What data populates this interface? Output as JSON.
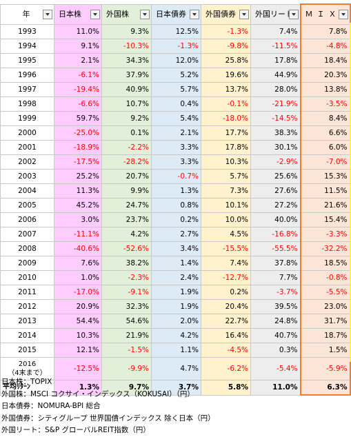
{
  "headers": {
    "year": "年",
    "c1": "日本株",
    "c2": "外国株",
    "c3": "日本債券",
    "c4": "外国債券",
    "c5": "外国リート",
    "c6": "ＭＩＸ"
  },
  "rows": [
    {
      "year": "1993",
      "v": [
        "11.0%",
        "9.3%",
        "12.5%",
        "-1.3%",
        "7.4%",
        "7.8%"
      ]
    },
    {
      "year": "1994",
      "v": [
        "9.1%",
        "-10.3%",
        "-1.3%",
        "-9.8%",
        "-11.5%",
        "-4.8%"
      ]
    },
    {
      "year": "1995",
      "v": [
        "2.1%",
        "34.3%",
        "12.0%",
        "25.8%",
        "17.8%",
        "18.4%"
      ]
    },
    {
      "year": "1996",
      "v": [
        "-6.1%",
        "37.9%",
        "5.2%",
        "19.6%",
        "44.9%",
        "20.3%"
      ]
    },
    {
      "year": "1997",
      "v": [
        "-19.4%",
        "40.9%",
        "5.7%",
        "13.7%",
        "28.0%",
        "13.8%"
      ]
    },
    {
      "year": "1998",
      "v": [
        "-6.6%",
        "10.7%",
        "0.4%",
        "-0.1%",
        "-21.9%",
        "-3.5%"
      ]
    },
    {
      "year": "1999",
      "v": [
        "59.7%",
        "9.2%",
        "5.4%",
        "-18.0%",
        "-14.5%",
        "8.4%"
      ]
    },
    {
      "year": "2000",
      "v": [
        "-25.0%",
        "0.1%",
        "2.1%",
        "17.7%",
        "38.3%",
        "6.6%"
      ]
    },
    {
      "year": "2001",
      "v": [
        "-18.9%",
        "-2.2%",
        "3.3%",
        "17.8%",
        "30.1%",
        "6.0%"
      ]
    },
    {
      "year": "2002",
      "v": [
        "-17.5%",
        "-28.2%",
        "3.3%",
        "10.3%",
        "-2.9%",
        "-7.0%"
      ]
    },
    {
      "year": "2003",
      "v": [
        "25.2%",
        "20.7%",
        "-0.7%",
        "5.7%",
        "25.6%",
        "15.3%"
      ]
    },
    {
      "year": "2004",
      "v": [
        "11.3%",
        "9.9%",
        "1.3%",
        "7.3%",
        "27.6%",
        "11.5%"
      ]
    },
    {
      "year": "2005",
      "v": [
        "45.2%",
        "24.7%",
        "0.8%",
        "10.1%",
        "27.2%",
        "21.6%"
      ]
    },
    {
      "year": "2006",
      "v": [
        "3.0%",
        "23.7%",
        "0.2%",
        "10.0%",
        "40.0%",
        "15.4%"
      ]
    },
    {
      "year": "2007",
      "v": [
        "-11.1%",
        "4.2%",
        "2.7%",
        "4.5%",
        "-16.8%",
        "-3.3%"
      ]
    },
    {
      "year": "2008",
      "v": [
        "-40.6%",
        "-52.6%",
        "3.4%",
        "-15.5%",
        "-55.5%",
        "-32.2%"
      ]
    },
    {
      "year": "2009",
      "v": [
        "7.6%",
        "38.2%",
        "1.4%",
        "7.4%",
        "37.8%",
        "18.5%"
      ]
    },
    {
      "year": "2010",
      "v": [
        "1.0%",
        "-2.3%",
        "2.4%",
        "-12.7%",
        "7.7%",
        "-0.8%"
      ]
    },
    {
      "year": "2011",
      "v": [
        "-17.0%",
        "-9.1%",
        "1.9%",
        "0.2%",
        "-3.7%",
        "-5.5%"
      ]
    },
    {
      "year": "2012",
      "v": [
        "20.9%",
        "32.3%",
        "1.9%",
        "20.4%",
        "39.5%",
        "23.0%"
      ]
    },
    {
      "year": "2013",
      "v": [
        "54.4%",
        "54.6%",
        "2.0%",
        "22.7%",
        "24.8%",
        "31.7%"
      ]
    },
    {
      "year": "2014",
      "v": [
        "10.3%",
        "21.9%",
        "4.2%",
        "16.4%",
        "40.7%",
        "18.7%"
      ]
    },
    {
      "year": "2015",
      "v": [
        "12.1%",
        "-1.5%",
        "1.1%",
        "-4.5%",
        "0.3%",
        "1.5%"
      ]
    }
  ],
  "row2016": {
    "year_line1": "2016",
    "year_line2": "（4末まで）",
    "v": [
      "-12.5%",
      "-9.9%",
      "4.7%",
      "-6.2%",
      "-5.4%",
      "-5.9%"
    ]
  },
  "average": {
    "label": "平均ﾘﾀｰﾝ",
    "v": [
      "1.3%",
      "9.7%",
      "3.7%",
      "5.8%",
      "11.0%",
      "6.3%"
    ]
  },
  "notes": [
    "日本株：TOPIX",
    "外国株：MSCI コクサイ・インデックス（KOKUSAI）（円）",
    "日本債券：NOMURA-BPI 総合",
    "外国債券：シティグループ 世界国債インデックス 除く日本（円）",
    "外国リート：S&P グローバルREIT指数（円）"
  ],
  "colors": {
    "c1": "#ffccff",
    "c2": "#e2f0d9",
    "c3": "#ddebf7",
    "c4": "#fff2cc",
    "c5": "#ededed",
    "c6": "#fce4d6",
    "negative": "#ff0000",
    "mix_border": "#ed7d31"
  }
}
